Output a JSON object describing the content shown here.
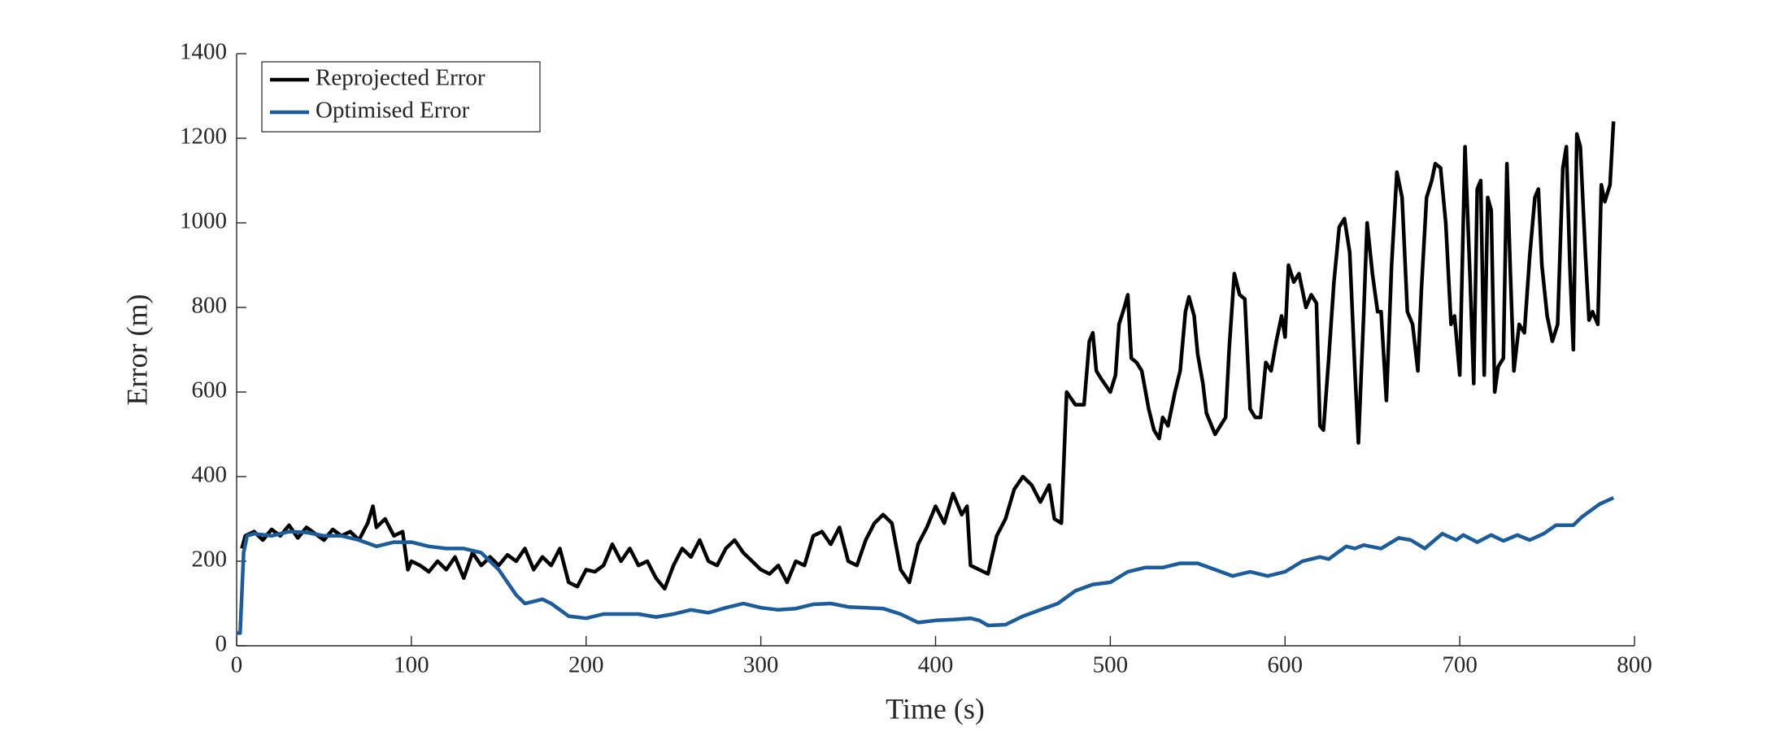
{
  "chart_data": {
    "type": "line",
    "xlabel": "Time (s)",
    "ylabel": "Error (m)",
    "xlim": [
      0,
      800
    ],
    "ylim": [
      0,
      1400
    ],
    "xticks": [
      0,
      100,
      200,
      300,
      400,
      500,
      600,
      700,
      800
    ],
    "yticks": [
      0,
      200,
      400,
      600,
      800,
      1000,
      1200,
      1400
    ],
    "grid": false,
    "legend": "top-left",
    "series": [
      {
        "name": "Reprojected Error",
        "color": "#000000",
        "x": [
          3,
          5,
          10,
          15,
          20,
          25,
          30,
          35,
          40,
          45,
          50,
          55,
          60,
          65,
          70,
          75,
          78,
          80,
          85,
          90,
          95,
          98,
          100,
          105,
          110,
          115,
          120,
          125,
          130,
          135,
          140,
          145,
          150,
          155,
          160,
          165,
          170,
          175,
          180,
          185,
          190,
          195,
          200,
          205,
          210,
          215,
          220,
          225,
          230,
          235,
          240,
          245,
          250,
          255,
          260,
          265,
          270,
          275,
          280,
          285,
          290,
          295,
          300,
          305,
          310,
          315,
          320,
          325,
          330,
          335,
          340,
          345,
          350,
          355,
          360,
          365,
          370,
          375,
          380,
          385,
          390,
          395,
          400,
          405,
          410,
          415,
          418,
          420,
          425,
          430,
          435,
          440,
          445,
          450,
          455,
          460,
          465,
          468,
          472,
          475,
          480,
          485,
          488,
          490,
          492,
          495,
          500,
          503,
          505,
          508,
          510,
          512,
          515,
          518,
          522,
          525,
          528,
          530,
          533,
          537,
          540,
          543,
          545,
          548,
          550,
          553,
          555,
          558,
          560,
          563,
          566,
          568,
          571,
          574,
          577,
          580,
          583,
          586,
          589,
          592,
          595,
          598,
          600,
          602,
          605,
          608,
          610,
          612,
          615,
          618,
          620,
          622,
          625,
          628,
          631,
          634,
          637,
          640,
          642,
          645,
          647,
          650,
          653,
          655,
          658,
          661,
          664,
          667,
          670,
          673,
          676,
          678,
          681,
          684,
          686,
          689,
          692,
          695,
          697,
          700,
          703,
          706,
          708,
          710,
          712,
          714,
          716,
          718,
          720,
          722,
          725,
          727,
          729,
          731,
          734,
          737,
          740,
          743,
          745,
          747,
          750,
          753,
          756,
          759,
          761,
          763,
          765,
          767,
          769,
          772,
          774,
          776,
          779,
          781,
          783,
          786,
          788
        ],
        "values": [
          230,
          260,
          270,
          250,
          275,
          260,
          285,
          255,
          280,
          265,
          250,
          275,
          260,
          270,
          250,
          290,
          330,
          280,
          300,
          260,
          270,
          180,
          200,
          190,
          175,
          200,
          180,
          210,
          160,
          220,
          190,
          210,
          190,
          215,
          200,
          230,
          180,
          210,
          190,
          230,
          150,
          140,
          180,
          175,
          190,
          240,
          200,
          230,
          190,
          200,
          160,
          135,
          190,
          230,
          210,
          250,
          200,
          190,
          230,
          250,
          220,
          200,
          180,
          170,
          190,
          150,
          200,
          190,
          260,
          270,
          240,
          280,
          200,
          190,
          250,
          290,
          310,
          290,
          180,
          150,
          240,
          280,
          330,
          290,
          360,
          310,
          330,
          190,
          180,
          170,
          260,
          300,
          370,
          400,
          380,
          340,
          380,
          300,
          290,
          600,
          570,
          570,
          720,
          740,
          650,
          630,
          600,
          640,
          760,
          800,
          830,
          680,
          670,
          650,
          560,
          510,
          490,
          540,
          520,
          600,
          650,
          790,
          825,
          780,
          690,
          620,
          550,
          520,
          500,
          520,
          540,
          700,
          880,
          830,
          820,
          560,
          540,
          540,
          670,
          650,
          720,
          780,
          730,
          900,
          860,
          880,
          840,
          800,
          830,
          810,
          520,
          510,
          680,
          860,
          990,
          1010,
          930,
          650,
          480,
          780,
          1000,
          880,
          790,
          790,
          580,
          900,
          1120,
          1060,
          790,
          760,
          650,
          840,
          1060,
          1100,
          1140,
          1130,
          1000,
          760,
          780,
          640,
          1180,
          860,
          620,
          1080,
          1100,
          640,
          1060,
          1030,
          600,
          660,
          680,
          1140,
          880,
          650,
          760,
          740,
          920,
          1060,
          1080,
          900,
          780,
          720,
          760,
          1130,
          1180,
          900,
          700,
          1210,
          1180,
          920,
          770,
          790,
          760,
          1090,
          1050,
          1090,
          1240
        ]
      },
      {
        "name": "Optimised Error",
        "color": "#1c5c9b",
        "x": [
          0,
          2,
          4,
          6,
          10,
          20,
          30,
          40,
          50,
          60,
          70,
          80,
          90,
          100,
          110,
          120,
          130,
          140,
          150,
          160,
          165,
          170,
          175,
          180,
          190,
          200,
          210,
          220,
          230,
          240,
          250,
          260,
          270,
          280,
          290,
          300,
          310,
          320,
          330,
          340,
          350,
          360,
          370,
          380,
          390,
          400,
          410,
          420,
          425,
          430,
          440,
          450,
          460,
          470,
          480,
          490,
          500,
          510,
          520,
          530,
          540,
          550,
          560,
          570,
          580,
          590,
          600,
          610,
          620,
          625,
          630,
          635,
          640,
          645,
          655,
          665,
          672,
          680,
          690,
          698,
          702,
          710,
          718,
          725,
          733,
          740,
          748,
          755,
          765,
          770,
          780,
          788
        ],
        "values": [
          30,
          30,
          220,
          260,
          265,
          260,
          270,
          268,
          260,
          260,
          250,
          235,
          245,
          245,
          235,
          230,
          230,
          220,
          180,
          120,
          100,
          105,
          110,
          100,
          70,
          65,
          75,
          75,
          75,
          68,
          75,
          85,
          78,
          90,
          100,
          90,
          85,
          88,
          98,
          100,
          92,
          90,
          88,
          75,
          55,
          60,
          62,
          65,
          60,
          48,
          50,
          70,
          85,
          100,
          130,
          145,
          150,
          175,
          185,
          185,
          195,
          195,
          180,
          165,
          175,
          165,
          175,
          200,
          210,
          205,
          220,
          235,
          230,
          238,
          230,
          255,
          250,
          230,
          265,
          250,
          262,
          245,
          262,
          248,
          262,
          250,
          265,
          285,
          285,
          305,
          335,
          350
        ]
      }
    ]
  }
}
